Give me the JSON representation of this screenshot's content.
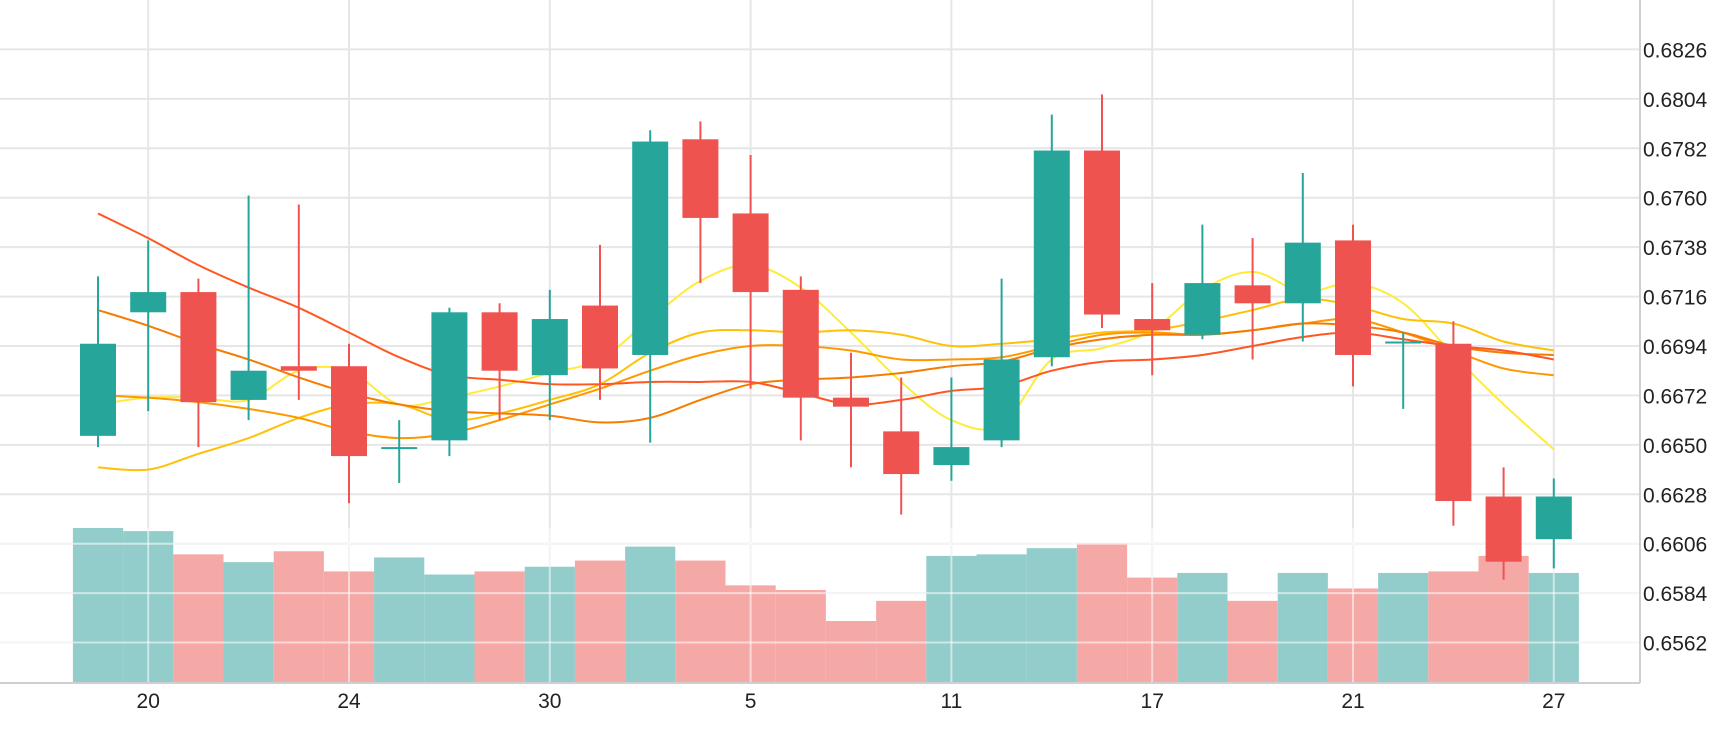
{
  "chart_data": {
    "type": "candlestick",
    "x_tick_labels": [
      "20",
      "24",
      "30",
      "5",
      "11",
      "17",
      "21",
      "27"
    ],
    "x_tick_candle_index": [
      1,
      5,
      9,
      13,
      17,
      21,
      25,
      29
    ],
    "y_tick_labels": [
      "0.6826",
      "0.6804",
      "0.6782",
      "0.6760",
      "0.6738",
      "0.6716",
      "0.6694",
      "0.6672",
      "0.6650",
      "0.6628",
      "0.6606",
      "0.6584",
      "0.6562"
    ],
    "y_tick_values": [
      0.6826,
      0.6804,
      0.6782,
      0.676,
      0.6738,
      0.6716,
      0.6694,
      0.6672,
      0.665,
      0.6628,
      0.6606,
      0.6584,
      0.6562
    ],
    "ylim": [
      0.6544,
      0.6848
    ],
    "grid": true,
    "candles": [
      {
        "o": 0.6654,
        "h": 0.6725,
        "l": 0.6649,
        "c": 0.6695
      },
      {
        "o": 0.6709,
        "h": 0.6741,
        "l": 0.6665,
        "c": 0.6718
      },
      {
        "o": 0.6718,
        "h": 0.6724,
        "l": 0.6649,
        "c": 0.6669
      },
      {
        "o": 0.667,
        "h": 0.6761,
        "l": 0.6661,
        "c": 0.6683
      },
      {
        "o": 0.6685,
        "h": 0.6757,
        "l": 0.667,
        "c": 0.6683
      },
      {
        "o": 0.6685,
        "h": 0.6695,
        "l": 0.6624,
        "c": 0.6645
      },
      {
        "o": 0.6649,
        "h": 0.6661,
        "l": 0.6633,
        "c": 0.6649
      },
      {
        "o": 0.6652,
        "h": 0.6711,
        "l": 0.6645,
        "c": 0.6709
      },
      {
        "o": 0.6709,
        "h": 0.6713,
        "l": 0.6661,
        "c": 0.6683
      },
      {
        "o": 0.6681,
        "h": 0.6719,
        "l": 0.6661,
        "c": 0.6706
      },
      {
        "o": 0.6712,
        "h": 0.6739,
        "l": 0.667,
        "c": 0.6684
      },
      {
        "o": 0.669,
        "h": 0.679,
        "l": 0.6651,
        "c": 0.6785
      },
      {
        "o": 0.6786,
        "h": 0.6794,
        "l": 0.6722,
        "c": 0.6751
      },
      {
        "o": 0.6753,
        "h": 0.6779,
        "l": 0.6675,
        "c": 0.6718
      },
      {
        "o": 0.6719,
        "h": 0.6725,
        "l": 0.6652,
        "c": 0.6671
      },
      {
        "o": 0.6671,
        "h": 0.6691,
        "l": 0.664,
        "c": 0.6667
      },
      {
        "o": 0.6656,
        "h": 0.668,
        "l": 0.6619,
        "c": 0.6637
      },
      {
        "o": 0.6641,
        "h": 0.668,
        "l": 0.6634,
        "c": 0.6649
      },
      {
        "o": 0.6652,
        "h": 0.6724,
        "l": 0.6649,
        "c": 0.6688
      },
      {
        "o": 0.6689,
        "h": 0.6797,
        "l": 0.6685,
        "c": 0.6781
      },
      {
        "o": 0.6781,
        "h": 0.6806,
        "l": 0.6702,
        "c": 0.6708
      },
      {
        "o": 0.6706,
        "h": 0.6722,
        "l": 0.6681,
        "c": 0.6701
      },
      {
        "o": 0.6699,
        "h": 0.6748,
        "l": 0.6697,
        "c": 0.6722
      },
      {
        "o": 0.6721,
        "h": 0.6742,
        "l": 0.6688,
        "c": 0.6713
      },
      {
        "o": 0.6713,
        "h": 0.6771,
        "l": 0.6696,
        "c": 0.674
      },
      {
        "o": 0.6741,
        "h": 0.6748,
        "l": 0.6676,
        "c": 0.669
      },
      {
        "o": 0.6696,
        "h": 0.67,
        "l": 0.6666,
        "c": 0.6696
      },
      {
        "o": 0.6695,
        "h": 0.6705,
        "l": 0.6614,
        "c": 0.6625
      },
      {
        "o": 0.6627,
        "h": 0.664,
        "l": 0.659,
        "c": 0.6598
      },
      {
        "o": 0.6608,
        "h": 0.6635,
        "l": 0.6595,
        "c": 0.6627
      }
    ],
    "volume": [
      1.0,
      0.98,
      0.83,
      0.78,
      0.85,
      0.72,
      0.81,
      0.7,
      0.72,
      0.75,
      0.79,
      0.88,
      0.79,
      0.63,
      0.6,
      0.4,
      0.53,
      0.82,
      0.83,
      0.87,
      0.9,
      0.68,
      0.71,
      0.53,
      0.71,
      0.61,
      0.71,
      0.72,
      0.82,
      0.71
    ],
    "moving_averages": [
      {
        "color": "#FFEB3B",
        "width": 2,
        "values": [
          0.6668,
          0.6671,
          0.6671,
          0.667,
          0.6683,
          0.6683,
          0.6668,
          0.6671,
          0.6676,
          0.6682,
          0.6688,
          0.6706,
          0.6723,
          0.673,
          0.672,
          0.67,
          0.6678,
          0.6661,
          0.6659,
          0.6688,
          0.6693,
          0.6701,
          0.6719,
          0.6727,
          0.6718,
          0.6722,
          0.6713,
          0.669,
          0.6668,
          0.6648
        ]
      },
      {
        "color": "#FFC107",
        "width": 2,
        "values": [
          0.664,
          0.6639,
          0.6646,
          0.6653,
          0.6662,
          0.6668,
          0.6668,
          0.6661,
          0.6664,
          0.667,
          0.6677,
          0.6691,
          0.67,
          0.6701,
          0.67,
          0.6701,
          0.6699,
          0.6694,
          0.6695,
          0.6697,
          0.67,
          0.6701,
          0.6705,
          0.671,
          0.6715,
          0.6712,
          0.6706,
          0.6704,
          0.6696,
          0.6692
        ]
      },
      {
        "color": "#FF9800",
        "width": 2,
        "values": [
          0.6672,
          0.6671,
          0.6669,
          0.6666,
          0.6662,
          0.6656,
          0.6653,
          0.6655,
          0.6661,
          0.6668,
          0.6675,
          0.6683,
          0.669,
          0.6694,
          0.6694,
          0.6692,
          0.6688,
          0.6688,
          0.6689,
          0.6694,
          0.6699,
          0.67,
          0.6699,
          0.6701,
          0.6704,
          0.6706,
          0.67,
          0.6692,
          0.6684,
          0.6681
        ]
      },
      {
        "color": "#F57C00",
        "width": 2,
        "values": [
          0.671,
          0.6703,
          0.6695,
          0.6688,
          0.668,
          0.6673,
          0.6668,
          0.6665,
          0.6664,
          0.6663,
          0.666,
          0.6662,
          0.667,
          0.6677,
          0.6679,
          0.668,
          0.6682,
          0.6685,
          0.6687,
          0.6693,
          0.6697,
          0.6699,
          0.6699,
          0.6701,
          0.6704,
          0.6703,
          0.67,
          0.6694,
          0.6691,
          0.669
        ]
      },
      {
        "color": "#FF5722",
        "width": 2,
        "values": [
          0.6753,
          0.6742,
          0.673,
          0.672,
          0.6711,
          0.67,
          0.6689,
          0.6681,
          0.6679,
          0.6677,
          0.6677,
          0.6678,
          0.6678,
          0.6678,
          0.6673,
          0.6668,
          0.667,
          0.6674,
          0.6676,
          0.6683,
          0.6687,
          0.6688,
          0.669,
          0.6694,
          0.6698,
          0.67,
          0.6697,
          0.6694,
          0.6692,
          0.6688
        ]
      }
    ],
    "colors": {
      "up": "#26A69A",
      "down": "#EF5350",
      "up_volume": "#92CDCB",
      "down_volume": "#F5A9A7",
      "grid": "#E6E6E6",
      "axis": "#CFCFCF"
    }
  }
}
